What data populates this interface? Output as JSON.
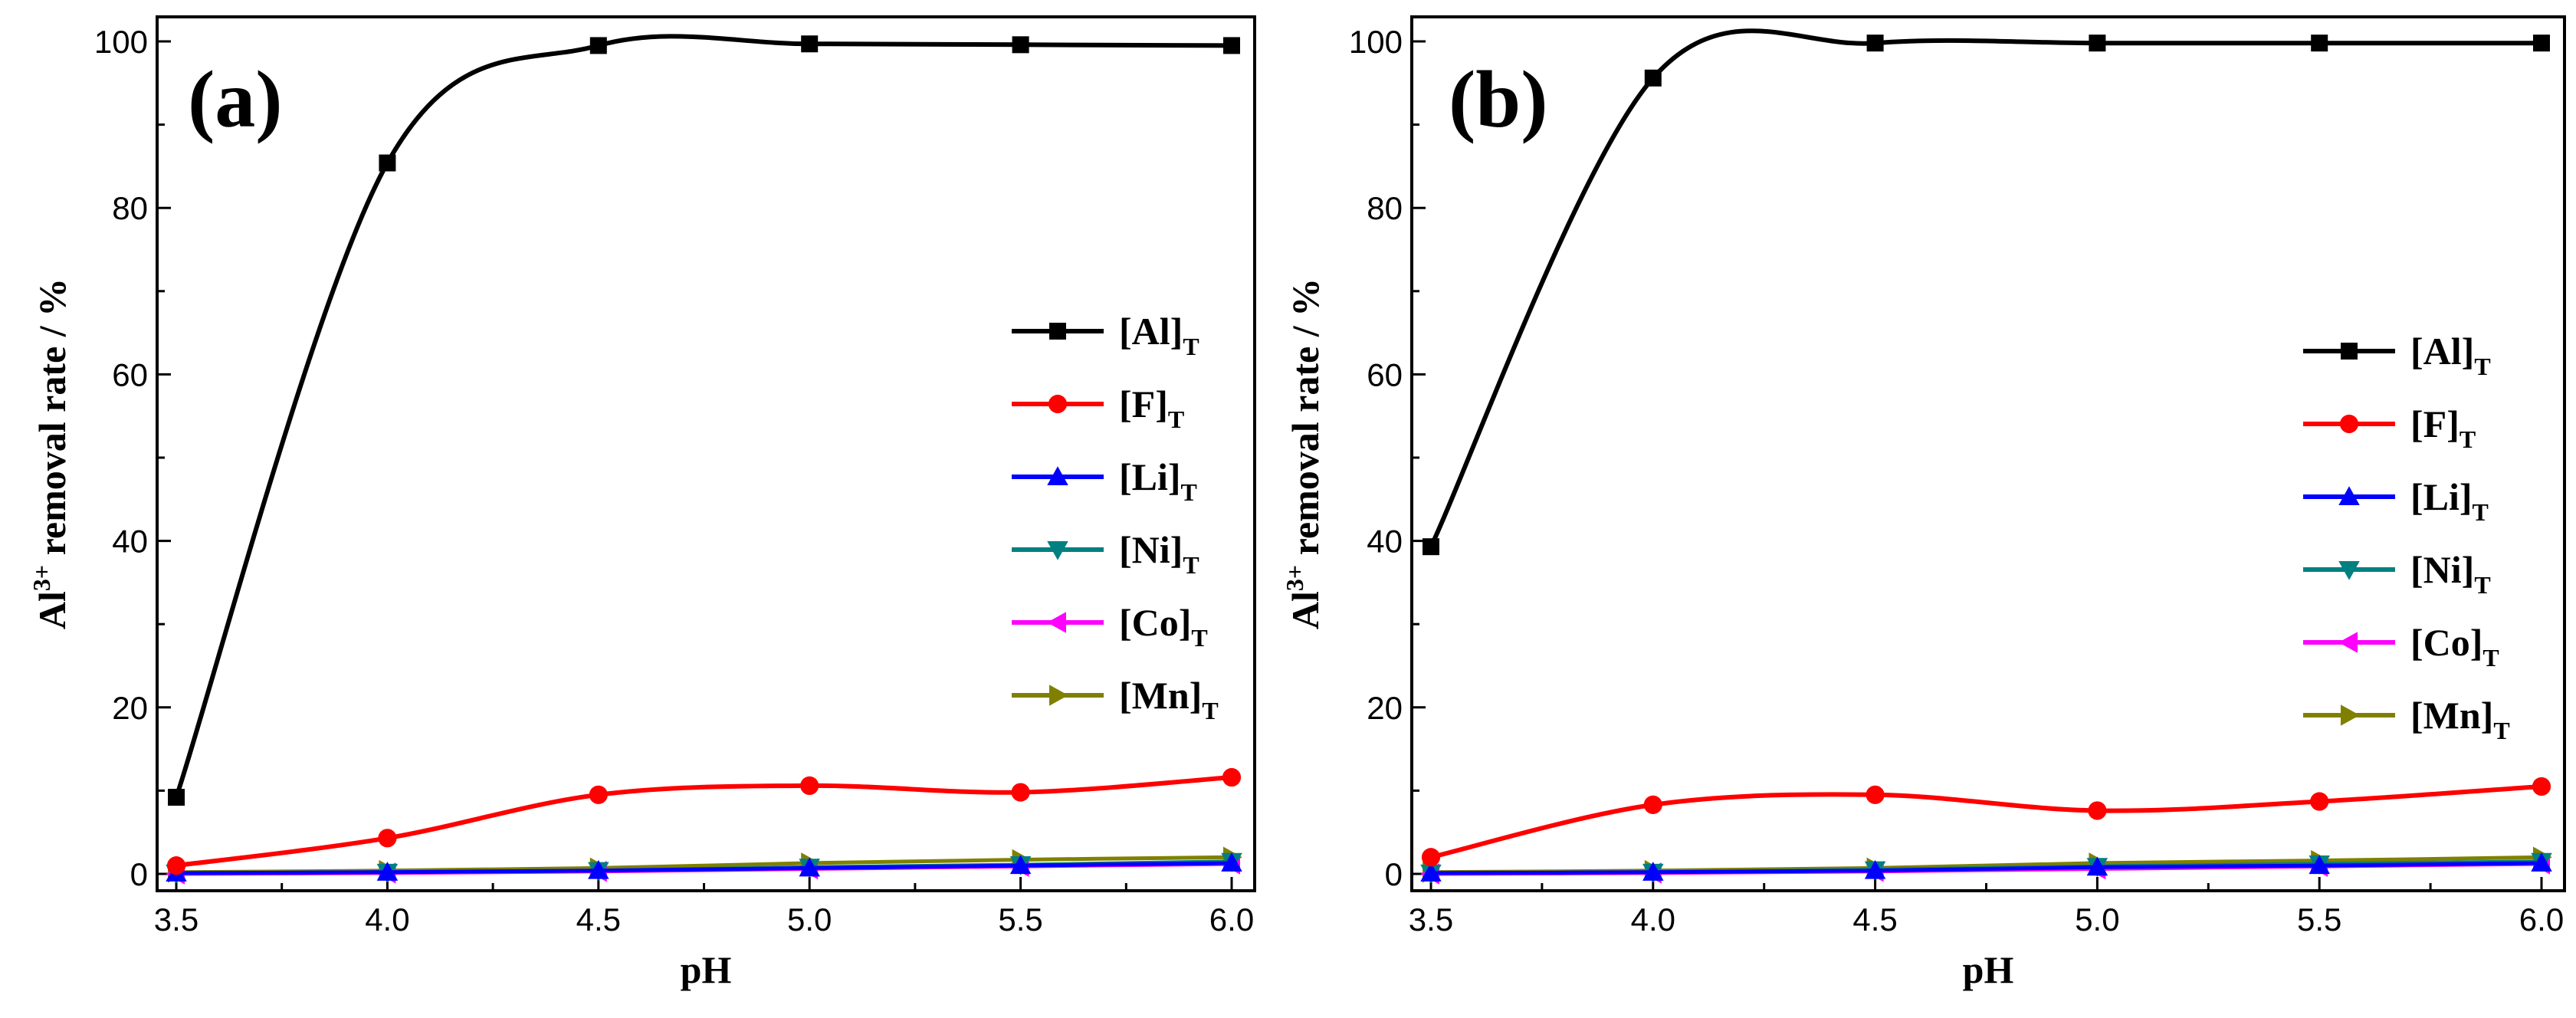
{
  "chart_data": [
    {
      "type": "line",
      "panel_label": "(a)",
      "xlabel": "pH",
      "ylabel_main": "Al",
      "ylabel_sup": "3+",
      "ylabel_rest": " removal rate / %",
      "xlim": [
        3.5,
        6.0
      ],
      "ylim": [
        0,
        100
      ],
      "xticks": [
        3.5,
        4.0,
        4.5,
        5.0,
        5.5,
        6.0
      ],
      "xtick_labels": [
        "3.5",
        "4.0",
        "4.5",
        "5.0",
        "5.5",
        "6.0"
      ],
      "yticks": [
        0,
        20,
        40,
        60,
        80,
        100
      ],
      "ytick_labels": [
        "0",
        "20",
        "40",
        "60",
        "80",
        "100"
      ],
      "grid": false,
      "legend_position": "right",
      "x": [
        3.5,
        4.0,
        4.5,
        5.0,
        5.5,
        6.0
      ],
      "series": [
        {
          "name": "[Al]",
          "sub": "T",
          "color": "#000000",
          "marker": "square",
          "values": [
            9.2,
            85.4,
            99.5,
            99.7,
            99.6,
            99.5
          ]
        },
        {
          "name": "[F]",
          "sub": "T",
          "color": "#ff0000",
          "marker": "circle",
          "values": [
            1.0,
            4.3,
            9.5,
            10.6,
            9.8,
            11.6
          ]
        },
        {
          "name": "[Li]",
          "sub": "T",
          "color": "#0000ff",
          "marker": "triangle-up",
          "values": [
            0.1,
            0.2,
            0.4,
            0.7,
            1.0,
            1.3
          ]
        },
        {
          "name": "[Ni]",
          "sub": "T",
          "color": "#008080",
          "marker": "triangle-down",
          "values": [
            0.1,
            0.2,
            0.4,
            0.8,
            1.1,
            1.5
          ]
        },
        {
          "name": "[Co]",
          "sub": "T",
          "color": "#ff00ff",
          "marker": "triangle-left",
          "values": [
            0.0,
            0.1,
            0.3,
            0.6,
            0.9,
            1.2
          ]
        },
        {
          "name": "[Mn]",
          "sub": "T",
          "color": "#808000",
          "marker": "triangle-right",
          "values": [
            0.2,
            0.4,
            0.7,
            1.3,
            1.7,
            2.0
          ]
        }
      ]
    },
    {
      "type": "line",
      "panel_label": "(b)",
      "xlabel": "pH",
      "ylabel_main": "Al",
      "ylabel_sup": "3+",
      "ylabel_rest": " removal rate / %",
      "xlim": [
        3.5,
        6.0
      ],
      "ylim": [
        0,
        100
      ],
      "xticks": [
        3.5,
        4.0,
        4.5,
        5.0,
        5.5,
        6.0
      ],
      "xtick_labels": [
        "3.5",
        "4.0",
        "4.5",
        "5.0",
        "5.5",
        "6.0"
      ],
      "yticks": [
        0,
        20,
        40,
        60,
        80,
        100
      ],
      "ytick_labels": [
        "0",
        "20",
        "40",
        "60",
        "80",
        "100"
      ],
      "grid": false,
      "legend_position": "right",
      "x": [
        3.5,
        4.0,
        4.5,
        5.0,
        5.5,
        6.0
      ],
      "series": [
        {
          "name": "[Al]",
          "sub": "T",
          "color": "#000000",
          "marker": "square",
          "values": [
            39.3,
            95.6,
            99.8,
            99.8,
            99.8,
            99.8
          ]
        },
        {
          "name": "[F]",
          "sub": "T",
          "color": "#ff0000",
          "marker": "circle",
          "values": [
            2.0,
            8.3,
            9.5,
            7.6,
            8.7,
            10.5
          ]
        },
        {
          "name": "[Li]",
          "sub": "T",
          "color": "#0000ff",
          "marker": "triangle-up",
          "values": [
            0.1,
            0.2,
            0.4,
            0.8,
            1.0,
            1.3
          ]
        },
        {
          "name": "[Ni]",
          "sub": "T",
          "color": "#008080",
          "marker": "triangle-down",
          "values": [
            0.1,
            0.2,
            0.5,
            0.9,
            1.2,
            1.5
          ]
        },
        {
          "name": "[Co]",
          "sub": "T",
          "color": "#ff00ff",
          "marker": "triangle-left",
          "values": [
            0.0,
            0.1,
            0.3,
            0.6,
            0.9,
            1.2
          ]
        },
        {
          "name": "[Mn]",
          "sub": "T",
          "color": "#808000",
          "marker": "triangle-right",
          "values": [
            0.2,
            0.4,
            0.7,
            1.3,
            1.6,
            2.0
          ]
        }
      ]
    }
  ]
}
